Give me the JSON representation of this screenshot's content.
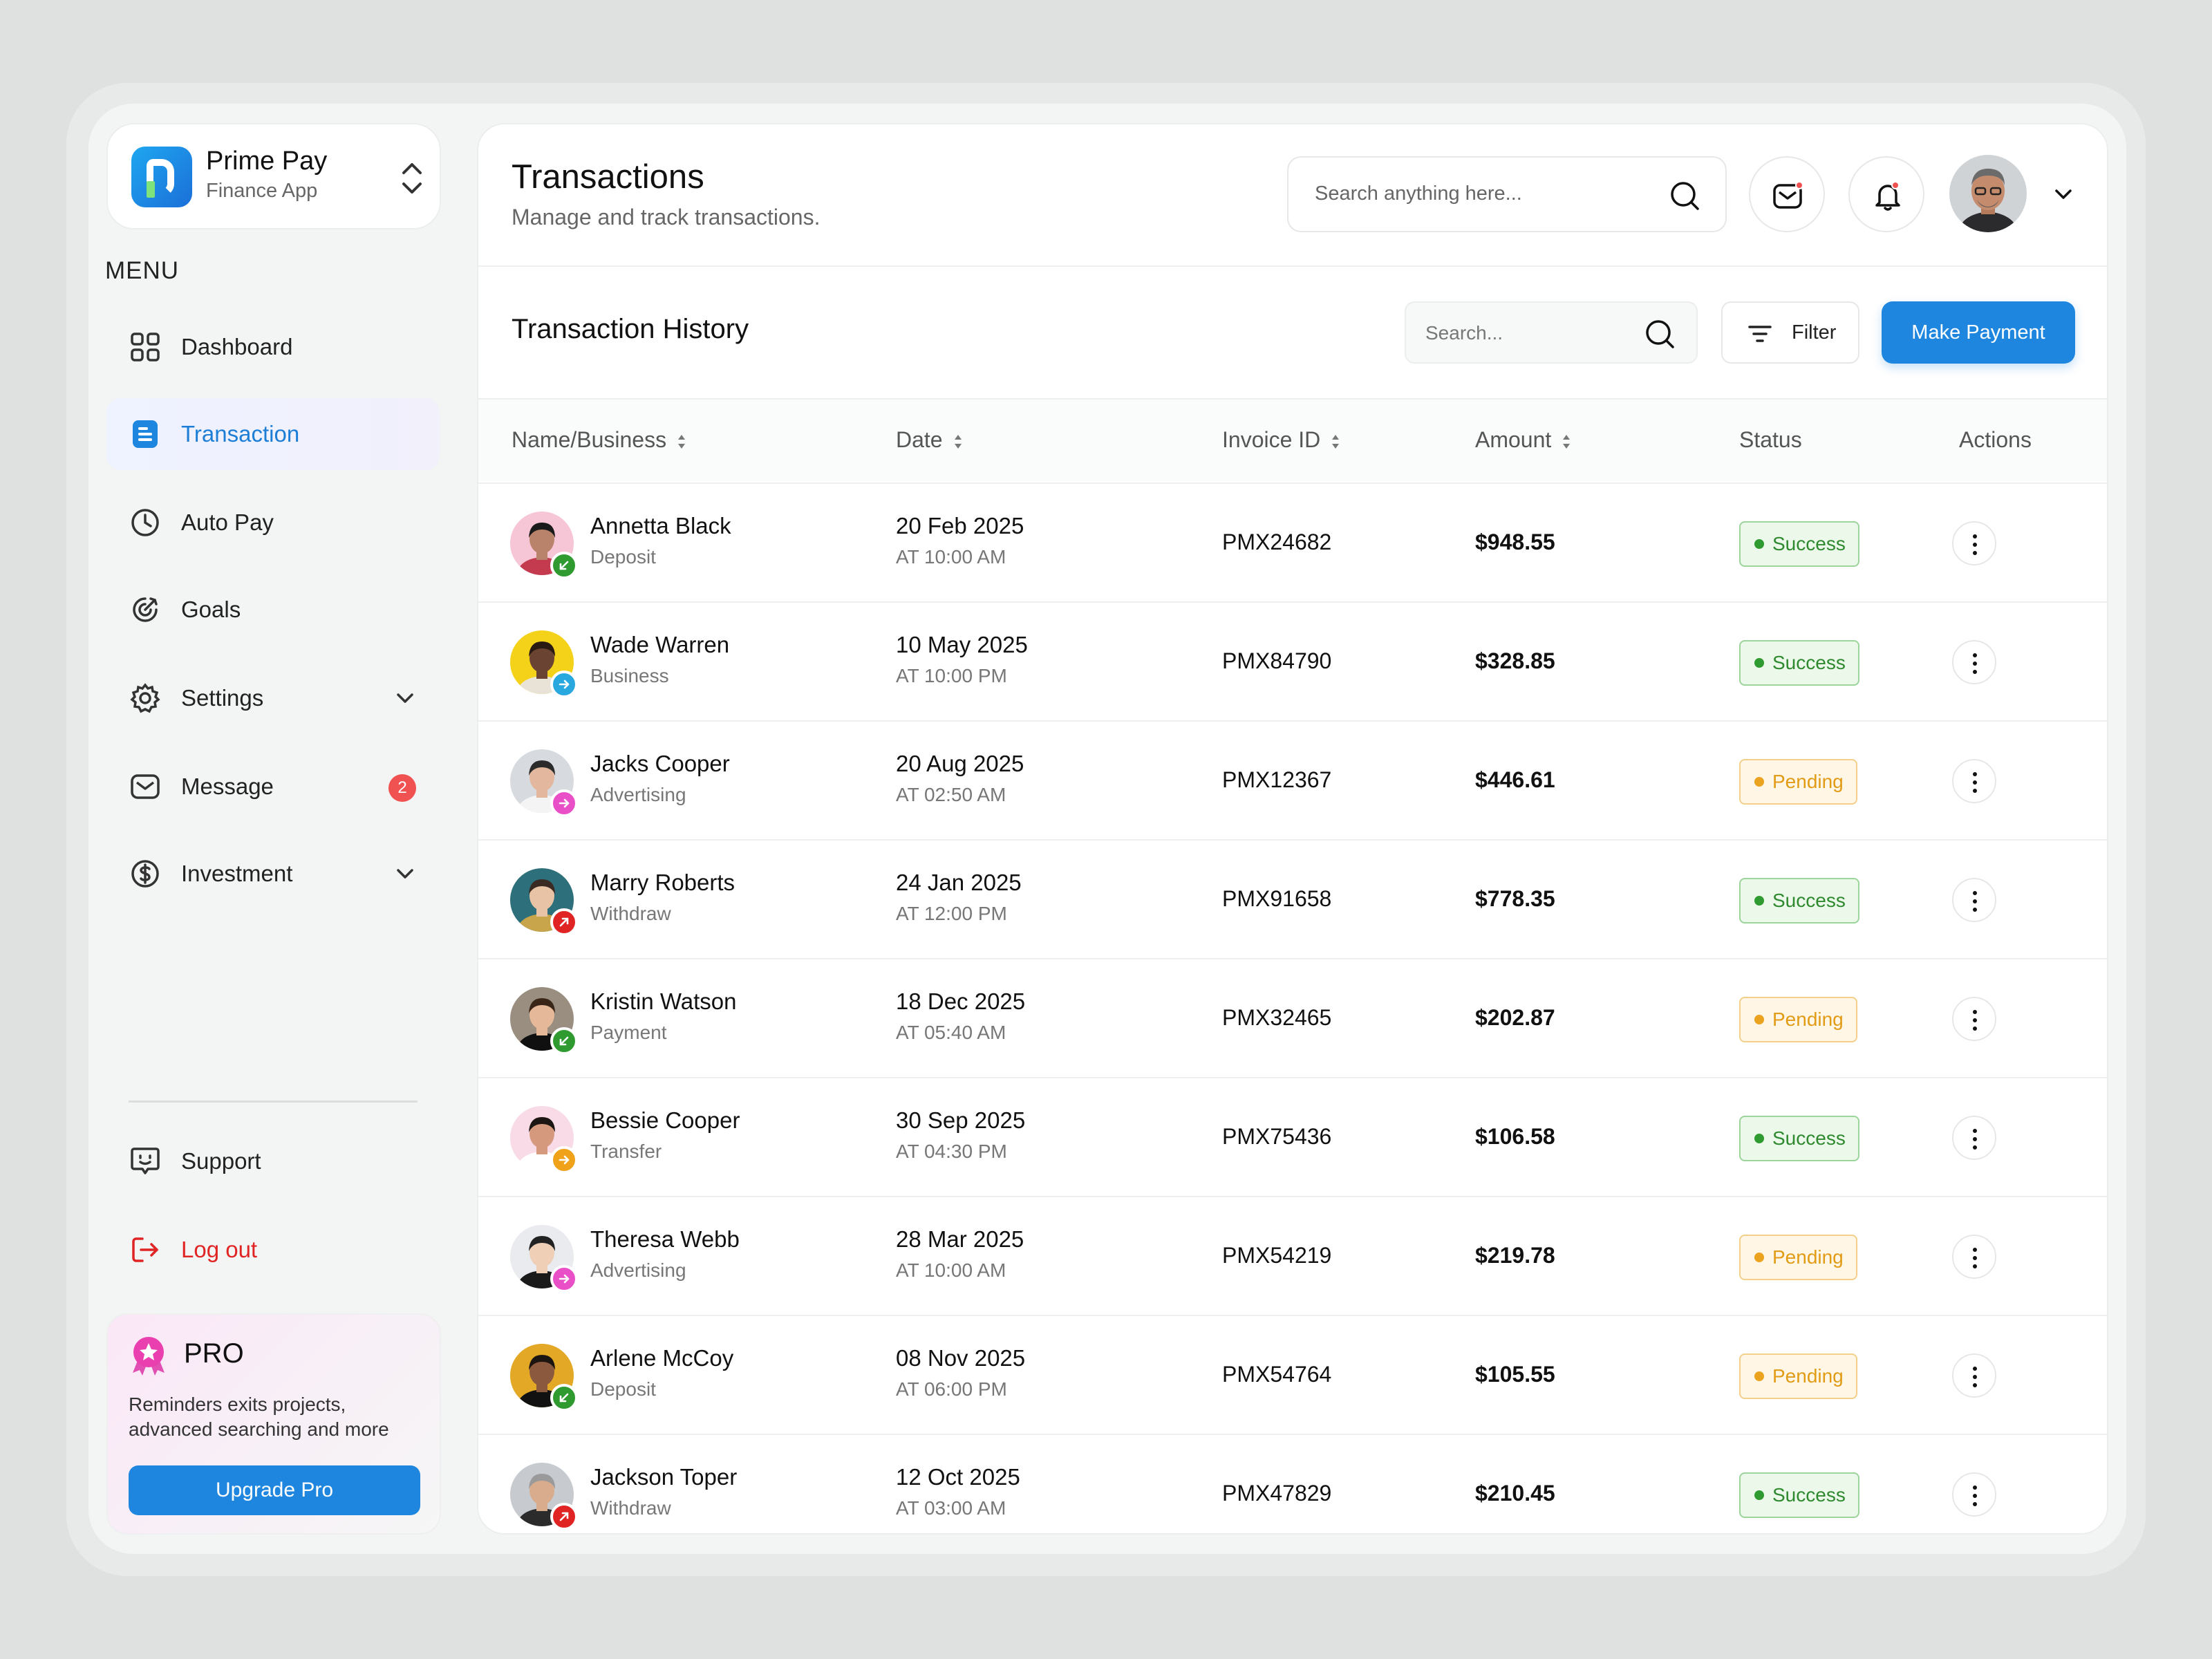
{
  "brand": {
    "name": "Prime Pay",
    "subtitle": "Finance App"
  },
  "menu": {
    "title": "MENU",
    "items": [
      {
        "label": "Dashboard",
        "icon": "grid-icon"
      },
      {
        "label": "Transaction",
        "icon": "document-icon",
        "active": true
      },
      {
        "label": "Auto Pay",
        "icon": "clock-icon"
      },
      {
        "label": "Goals",
        "icon": "target-icon"
      },
      {
        "label": "Settings",
        "icon": "gear-icon",
        "expandable": true
      },
      {
        "label": "Message",
        "icon": "mail-icon",
        "badge": "2"
      },
      {
        "label": "Investment",
        "icon": "dollar-icon",
        "expandable": true
      }
    ],
    "support": "Support",
    "logout": "Log out"
  },
  "pro": {
    "title": "PRO",
    "description": "Reminders exits projects, advanced searching and more",
    "button": "Upgrade Pro"
  },
  "header": {
    "title": "Transactions",
    "subtitle": "Manage and track transactions.",
    "search_placeholder": "Search anything here..."
  },
  "section": {
    "title": "Transaction History",
    "search_placeholder": "Search...",
    "filter_label": "Filter",
    "make_payment_label": "Make Payment"
  },
  "table": {
    "columns": [
      "Name/Business",
      "Date",
      "Invoice ID",
      "Amount",
      "Status",
      "Actions"
    ],
    "rows": [
      {
        "name": "Annetta Black",
        "type": "Deposit",
        "date": "20 Feb 2025",
        "time": "AT 10:00 AM",
        "invoice": "PMX24682",
        "amount": "$948.55",
        "status": "Success"
      },
      {
        "name": "Wade Warren",
        "type": "Business",
        "date": "10 May 2025",
        "time": "AT 10:00 PM",
        "invoice": "PMX84790",
        "amount": "$328.85",
        "status": "Success"
      },
      {
        "name": "Jacks Cooper",
        "type": "Advertising",
        "date": "20 Aug 2025",
        "time": "AT 02:50 AM",
        "invoice": "PMX12367",
        "amount": "$446.61",
        "status": "Pending"
      },
      {
        "name": "Marry Roberts",
        "type": "Withdraw",
        "date": "24 Jan 2025",
        "time": "AT 12:00 PM",
        "invoice": "PMX91658",
        "amount": "$778.35",
        "status": "Success"
      },
      {
        "name": "Kristin Watson",
        "type": "Payment",
        "date": "18 Dec 2025",
        "time": "AT 05:40 AM",
        "invoice": "PMX32465",
        "amount": "$202.87",
        "status": "Pending"
      },
      {
        "name": "Bessie Cooper",
        "type": "Transfer",
        "date": "30 Sep 2025",
        "time": "AT 04:30 PM",
        "invoice": "PMX75436",
        "amount": "$106.58",
        "status": "Success"
      },
      {
        "name": "Theresa Webb",
        "type": "Advertising",
        "date": "28 Mar 2025",
        "time": "AT 10:00 AM",
        "invoice": "PMX54219",
        "amount": "$219.78",
        "status": "Pending"
      },
      {
        "name": "Arlene McCoy",
        "type": "Deposit",
        "date": "08 Nov 2025",
        "time": "AT 06:00 PM",
        "invoice": "PMX54764",
        "amount": "$105.55",
        "status": "Pending"
      },
      {
        "name": "Jackson Toper",
        "type": "Withdraw",
        "date": "12 Oct 2025",
        "time": "AT 03:00 AM",
        "invoice": "PMX47829",
        "amount": "$210.45",
        "status": "Success"
      }
    ]
  },
  "colors": {
    "accent": "#1f86e0",
    "success": "#2f9a2f",
    "pending": "#eba31f",
    "danger": "#e02424",
    "type_deposit": "#2f9a2f",
    "type_business": "#29a8e0",
    "type_advertising": "#e94fc6",
    "type_withdraw": "#e02424",
    "type_payment": "#2f9a2f",
    "type_transfer": "#f0a21a"
  }
}
